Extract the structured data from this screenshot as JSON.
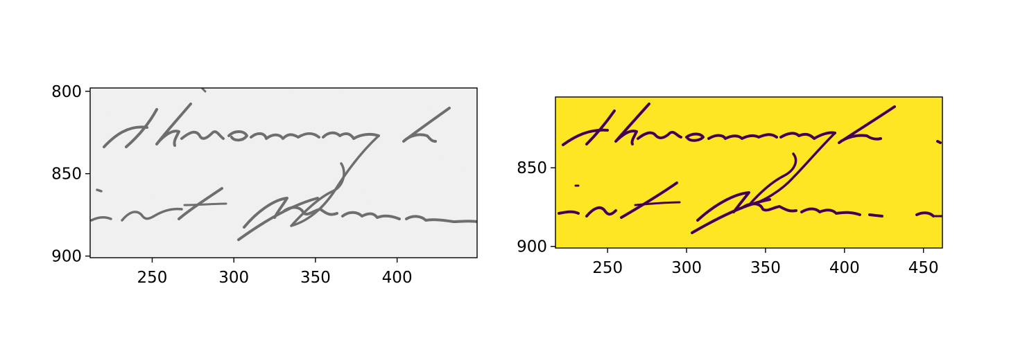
{
  "colors": {
    "figure_background": "#ffffff",
    "gray_paper": "#efefef",
    "gray_ink": "#6e6e6e",
    "binary_background": "#fde725",
    "binary_ink": "#440154",
    "axis": "#000000"
  },
  "chart_data": [
    {
      "type": "image",
      "image_content": "grayscale crop of handwritten text",
      "handwriting": [
        "through",
        "ist frm"
      ],
      "colormap": "gray",
      "xlim": [
        212,
        449
      ],
      "ylim": [
        901,
        798
      ],
      "x_ticks": [
        250,
        300,
        350,
        400
      ],
      "y_ticks": [
        800,
        850,
        900
      ],
      "title": "",
      "xlabel": "",
      "ylabel": ""
    },
    {
      "type": "image",
      "image_content": "binarized (thresholded) crop of the same handwritten text",
      "handwriting": [
        "through",
        "ist frm"
      ],
      "colormap": "viridis",
      "xlim": [
        217,
        462
      ],
      "ylim": [
        901,
        805
      ],
      "x_ticks": [
        250,
        300,
        350,
        400,
        450
      ],
      "y_ticks": [
        850,
        900
      ],
      "title": "",
      "xlabel": "",
      "ylabel": ""
    }
  ]
}
